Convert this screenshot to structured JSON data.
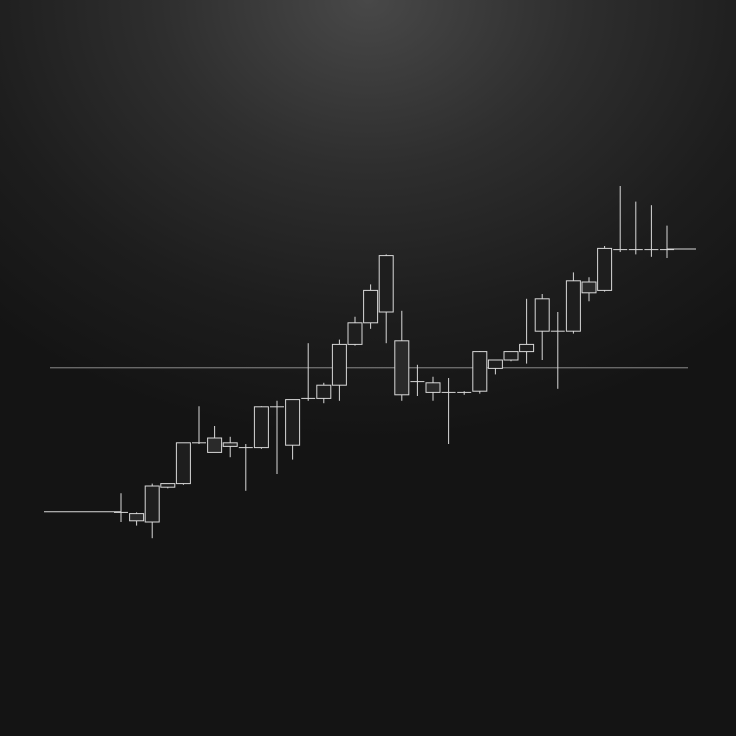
{
  "theme": {
    "background_center": "#484848",
    "background_edge": "#141414",
    "candle_stroke": "#d8d8d8",
    "reference_line": "#9a9a9a"
  },
  "chart_data": {
    "type": "candlestick",
    "title": "",
    "xlabel": "",
    "ylabel": "",
    "grid": false,
    "axes_visible": false,
    "ylim": [
      0,
      100
    ],
    "reference_level": 48.7,
    "lead_in_level": 24.7,
    "tail_level": 68.5,
    "candles": [
      {
        "open": 24.6,
        "high": 27.8,
        "low": 23.0,
        "close": 24.6
      },
      {
        "open": 24.4,
        "high": 24.6,
        "low": 22.4,
        "close": 23.2
      },
      {
        "open": 23.0,
        "high": 29.4,
        "low": 20.3,
        "close": 29.0
      },
      {
        "open": 28.8,
        "high": 29.4,
        "low": 28.6,
        "close": 29.4
      },
      {
        "open": 29.4,
        "high": 36.2,
        "low": 29.2,
        "close": 36.2
      },
      {
        "open": 36.2,
        "high": 42.3,
        "low": 36.0,
        "close": 36.2
      },
      {
        "open": 37.0,
        "high": 39.0,
        "low": 34.6,
        "close": 34.6
      },
      {
        "open": 36.2,
        "high": 37.2,
        "low": 33.8,
        "close": 35.6
      },
      {
        "open": 35.4,
        "high": 36.0,
        "low": 28.2,
        "close": 35.4
      },
      {
        "open": 35.4,
        "high": 42.3,
        "low": 35.2,
        "close": 42.2
      },
      {
        "open": 42.2,
        "high": 43.2,
        "low": 31.0,
        "close": 42.2
      },
      {
        "open": 35.8,
        "high": 43.4,
        "low": 33.4,
        "close": 43.4
      },
      {
        "open": 43.4,
        "high": 52.8,
        "low": 43.2,
        "close": 43.6
      },
      {
        "open": 43.6,
        "high": 46.2,
        "low": 42.8,
        "close": 45.8
      },
      {
        "open": 45.8,
        "high": 53.4,
        "low": 43.2,
        "close": 52.6
      },
      {
        "open": 52.6,
        "high": 57.2,
        "low": 52.4,
        "close": 56.2
      },
      {
        "open": 56.2,
        "high": 62.6,
        "low": 55.2,
        "close": 61.6
      },
      {
        "open": 58.0,
        "high": 67.6,
        "low": 52.8,
        "close": 67.4
      },
      {
        "open": 53.2,
        "high": 58.2,
        "low": 43.2,
        "close": 44.2
      },
      {
        "open": 46.4,
        "high": 49.2,
        "low": 44.0,
        "close": 46.4
      },
      {
        "open": 46.2,
        "high": 47.2,
        "low": 43.2,
        "close": 44.6
      },
      {
        "open": 44.6,
        "high": 47.0,
        "low": 36.0,
        "close": 44.4
      },
      {
        "open": 44.6,
        "high": 44.8,
        "low": 44.2,
        "close": 44.6
      },
      {
        "open": 44.8,
        "high": 51.5,
        "low": 44.4,
        "close": 51.4
      },
      {
        "open": 48.6,
        "high": 50.0,
        "low": 47.6,
        "close": 50.0
      },
      {
        "open": 50.0,
        "high": 51.4,
        "low": 49.8,
        "close": 51.4
      },
      {
        "open": 51.4,
        "high": 60.2,
        "low": 49.4,
        "close": 52.6
      },
      {
        "open": 54.8,
        "high": 61.0,
        "low": 50.0,
        "close": 60.2
      },
      {
        "open": 54.8,
        "high": 58.0,
        "low": 45.2,
        "close": 54.8
      },
      {
        "open": 54.8,
        "high": 64.6,
        "low": 54.4,
        "close": 63.2
      },
      {
        "open": 63.0,
        "high": 63.8,
        "low": 59.8,
        "close": 61.2
      },
      {
        "open": 61.6,
        "high": 69.0,
        "low": 61.4,
        "close": 68.6
      },
      {
        "open": 68.4,
        "high": 79.0,
        "low": 68.0,
        "close": 68.4
      },
      {
        "open": 68.4,
        "high": 76.4,
        "low": 67.6,
        "close": 68.4
      },
      {
        "open": 68.4,
        "high": 75.8,
        "low": 67.2,
        "close": 68.4
      },
      {
        "open": 68.4,
        "high": 72.4,
        "low": 67.0,
        "close": 68.2
      }
    ]
  }
}
